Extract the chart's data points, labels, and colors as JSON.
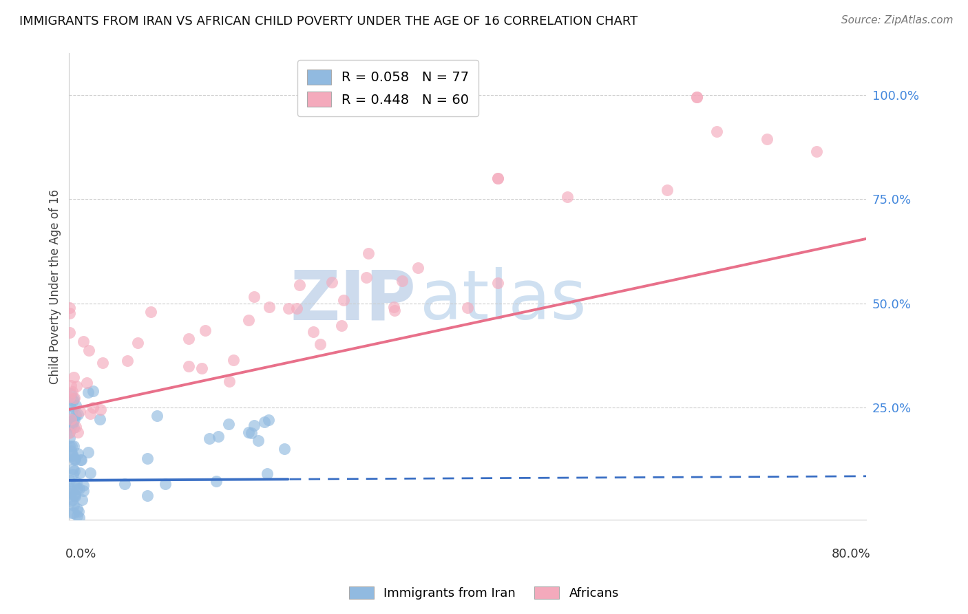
{
  "title": "IMMIGRANTS FROM IRAN VS AFRICAN CHILD POVERTY UNDER THE AGE OF 16 CORRELATION CHART",
  "source": "Source: ZipAtlas.com",
  "ylabel": "Child Poverty Under the Age of 16",
  "x_range": [
    0.0,
    0.8
  ],
  "y_range": [
    -0.02,
    1.1
  ],
  "iran_color": "#91BAE0",
  "african_color": "#F4AABC",
  "iran_line_color": "#3A6FC4",
  "african_line_color": "#E8708A",
  "iran_line_solid_end": 0.22,
  "iran_trend_start_y": 0.075,
  "iran_trend_end_y": 0.085,
  "african_trend_start_y": 0.245,
  "african_trend_end_y": 0.655,
  "watermark_zip": "ZIP",
  "watermark_atlas": "atlas"
}
